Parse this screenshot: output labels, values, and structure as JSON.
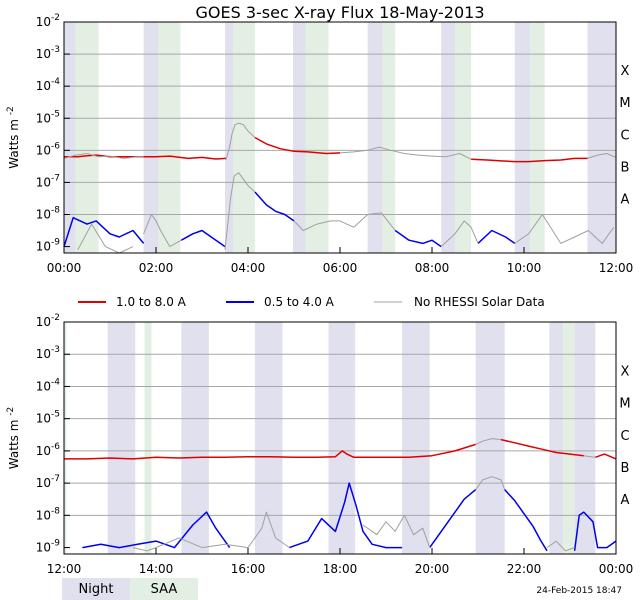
{
  "colors": {
    "long": "#e00000",
    "short": "#0000ee",
    "norhessi": "#a0a0a0",
    "night": "#e0e0ee",
    "saa": "#e2efe2",
    "grid": "#a8a8a8",
    "frame": "#000000"
  },
  "legend": {
    "long": "1.0 to 8.0 A",
    "short": "0.5 to 4.0 A",
    "norhessi": "No RHESSI Solar Data",
    "night": "Night",
    "saa": "SAA"
  },
  "footer": {
    "timestamp": "24-Feb-2015 18:47"
  },
  "chart_data": [
    {
      "type": "line",
      "title": "GOES 3-sec X-ray Flux   18-May-2013",
      "ylabel": "Watts m",
      "ylabel_sup": "-2",
      "yscale": "log",
      "ylim": [
        -9.2,
        -2
      ],
      "xlim": [
        0,
        12
      ],
      "xticks": [
        "00:00",
        "02:00",
        "04:00",
        "06:00",
        "08:00",
        "10:00",
        "12:00"
      ],
      "ytick_exponents": [
        -9,
        -8,
        -7,
        -6,
        -5,
        -4,
        -3,
        -2
      ],
      "class_labels": [
        {
          "label": "A",
          "exp": -8
        },
        {
          "label": "B",
          "exp": -7
        },
        {
          "label": "C",
          "exp": -6
        },
        {
          "label": "M",
          "exp": -5
        },
        {
          "label": "X",
          "exp": -4
        }
      ],
      "night": [
        [
          0,
          0.25
        ],
        [
          1.73,
          2.05
        ],
        [
          3.5,
          3.68
        ],
        [
          4.98,
          5.25
        ],
        [
          6.6,
          6.93
        ],
        [
          8.2,
          8.5
        ],
        [
          9.8,
          10.13
        ],
        [
          11.38,
          12
        ]
      ],
      "saa": [
        [
          0.25,
          0.75
        ],
        [
          2.05,
          2.53
        ],
        [
          3.68,
          4.15
        ],
        [
          5.25,
          5.75
        ],
        [
          6.93,
          7.2
        ],
        [
          8.5,
          8.85
        ],
        [
          10.13,
          10.45
        ]
      ],
      "series": [
        {
          "name": "1.0 to 8.0 A",
          "key": "long",
          "t": [
            0,
            0.3,
            0.5,
            0.7,
            1.0,
            1.5,
            2.0,
            2.3,
            2.7,
            3.0,
            3.3,
            3.52
          ],
          "y": [
            -6.2,
            -6.2,
            -6.17,
            -6.15,
            -6.2,
            -6.2,
            -6.2,
            -6.18,
            -6.25,
            -6.22,
            -6.27,
            -6.25
          ]
        },
        {
          "name": "1.0 to 8.0 A",
          "key": "long",
          "t": [
            4.15,
            4.4,
            4.7,
            5.0,
            5.3,
            5.7,
            6.0
          ],
          "y": [
            -5.6,
            -5.8,
            -5.95,
            -6.03,
            -6.05,
            -6.1,
            -6.08
          ]
        },
        {
          "name": "1.0 to 8.0 A",
          "key": "long",
          "t": [
            8.85,
            9.2,
            9.5,
            9.8,
            10.1,
            10.45,
            10.8,
            11.1,
            11.38
          ],
          "y": [
            -6.28,
            -6.3,
            -6.33,
            -6.35,
            -6.35,
            -6.32,
            -6.3,
            -6.25,
            -6.25
          ]
        },
        {
          "name": "No RHESSI Solar Data",
          "key": "norhessi",
          "t": [
            0,
            0.25,
            0.5,
            0.75,
            1.0,
            1.3,
            1.6,
            1.73
          ],
          "y": [
            -6.25,
            -6.15,
            -6.1,
            -6.2,
            -6.18,
            -6.25,
            -6.2,
            -6.2
          ]
        },
        {
          "name": "No RHESSI Solar Data",
          "key": "norhessi",
          "t": [
            3.52,
            3.6,
            3.65,
            3.72,
            3.8,
            3.9,
            4.0,
            4.15
          ],
          "y": [
            -6.3,
            -5.9,
            -5.5,
            -5.2,
            -5.15,
            -5.2,
            -5.4,
            -5.6
          ]
        },
        {
          "name": "No RHESSI Solar Data",
          "key": "norhessi",
          "t": [
            6.0,
            6.3,
            6.6,
            6.85,
            7.1,
            7.4,
            7.7,
            8.0,
            8.3,
            8.6,
            8.85
          ],
          "y": [
            -6.08,
            -6.05,
            -6.0,
            -5.9,
            -6.0,
            -6.1,
            -6.15,
            -6.18,
            -6.2,
            -6.1,
            -6.28
          ]
        },
        {
          "name": "No RHESSI Solar Data",
          "key": "norhessi",
          "t": [
            11.38,
            11.6,
            11.8,
            12.0
          ],
          "y": [
            -6.25,
            -6.15,
            -6.1,
            -6.22
          ]
        },
        {
          "name": "0.5 to 4.0 A",
          "key": "short",
          "t": [
            0,
            0.2,
            0.5,
            0.7,
            1.0,
            1.2,
            1.5,
            1.73
          ],
          "y": [
            -9.0,
            -8.1,
            -8.3,
            -8.2,
            -8.6,
            -8.7,
            -8.5,
            -8.9
          ]
        },
        {
          "name": "0.5 to 4.0 A",
          "key": "short",
          "t": [
            2.55,
            2.8,
            3.0,
            3.2,
            3.4,
            3.5
          ],
          "y": [
            -8.8,
            -8.6,
            -8.5,
            -8.7,
            -8.9,
            -9.0
          ]
        },
        {
          "name": "0.5 to 4.0 A",
          "key": "short",
          "t": [
            4.15,
            4.4,
            4.6,
            4.8,
            5.0
          ],
          "y": [
            -7.3,
            -7.7,
            -7.9,
            -8.0,
            -8.2
          ]
        },
        {
          "name": "0.5 to 4.0 A",
          "key": "short",
          "t": [
            7.2,
            7.5,
            7.8,
            8.0,
            8.2
          ],
          "y": [
            -8.5,
            -8.8,
            -8.9,
            -8.8,
            -9.0
          ]
        },
        {
          "name": "0.5 to 4.0 A",
          "key": "short",
          "t": [
            9.0,
            9.3,
            9.6,
            9.8
          ],
          "y": [
            -8.9,
            -8.5,
            -8.7,
            -8.9
          ]
        },
        {
          "name": "No RHESSI Solar Data",
          "key": "norhessi",
          "t": [
            0.3,
            0.6,
            0.9,
            1.2,
            1.5
          ],
          "y": [
            -9.1,
            -8.3,
            -9.0,
            -9.2,
            -9.0
          ]
        },
        {
          "name": "No RHESSI Solar Data",
          "key": "norhessi",
          "t": [
            1.73,
            1.9,
            2.0,
            2.1,
            2.3,
            2.55
          ],
          "y": [
            -8.6,
            -8.0,
            -8.2,
            -8.5,
            -9.0,
            -8.8
          ]
        },
        {
          "name": "No RHESSI Solar Data",
          "key": "norhessi",
          "t": [
            3.5,
            3.62,
            3.7,
            3.8,
            3.9,
            4.0,
            4.15
          ],
          "y": [
            -9.1,
            -7.5,
            -6.8,
            -6.7,
            -6.9,
            -7.1,
            -7.3
          ]
        },
        {
          "name": "No RHESSI Solar Data",
          "key": "norhessi",
          "t": [
            5.0,
            5.2,
            5.5,
            5.8,
            6.0,
            6.3,
            6.6,
            6.9,
            7.2
          ],
          "y": [
            -8.2,
            -8.5,
            -8.3,
            -8.2,
            -8.2,
            -8.4,
            -8.0,
            -7.95,
            -8.5
          ]
        },
        {
          "name": "No RHESSI Solar Data",
          "key": "norhessi",
          "t": [
            8.2,
            8.5,
            8.7,
            8.85,
            9.0
          ],
          "y": [
            -9.0,
            -8.6,
            -8.2,
            -8.4,
            -8.9
          ]
        },
        {
          "name": "No RHESSI Solar Data",
          "key": "norhessi",
          "t": [
            9.8,
            10.1,
            10.4,
            10.8,
            11.1,
            11.4,
            11.7,
            11.95
          ],
          "y": [
            -8.9,
            -8.6,
            -8.0,
            -8.9,
            -8.7,
            -8.5,
            -8.9,
            -8.4
          ]
        }
      ]
    },
    {
      "type": "line",
      "title": "",
      "ylabel": "Watts m",
      "ylabel_sup": "-2",
      "yscale": "log",
      "ylim": [
        -9.2,
        -2
      ],
      "xlim": [
        12,
        24
      ],
      "xticks": [
        "12:00",
        "14:00",
        "16:00",
        "18:00",
        "20:00",
        "22:00",
        "00:00"
      ],
      "ytick_exponents": [
        -9,
        -8,
        -7,
        -6,
        -5,
        -4,
        -3,
        -2
      ],
      "class_labels": [
        {
          "label": "A",
          "exp": -8
        },
        {
          "label": "B",
          "exp": -7
        },
        {
          "label": "C",
          "exp": -6
        },
        {
          "label": "M",
          "exp": -5
        },
        {
          "label": "X",
          "exp": -4
        }
      ],
      "night": [
        [
          12.95,
          13.55
        ],
        [
          14.55,
          15.15
        ],
        [
          16.15,
          16.75
        ],
        [
          17.75,
          18.33
        ],
        [
          19.35,
          19.95
        ],
        [
          20.95,
          21.58
        ],
        [
          22.55,
          22.85
        ],
        [
          23.1,
          23.55
        ]
      ],
      "saa": [
        [
          12.0,
          12.05
        ],
        [
          13.75,
          13.9
        ],
        [
          22.85,
          23.1
        ]
      ],
      "series": [
        {
          "name": "1.0 to 8.0 A",
          "key": "long",
          "t": [
            12.0,
            12.5,
            13.0,
            13.5,
            14.0,
            14.5,
            15.0,
            15.5,
            16.0,
            16.5,
            17.0,
            17.5,
            17.9,
            18.05,
            18.15,
            18.3,
            18.6,
            19.0,
            19.5,
            20.0,
            20.5,
            20.95
          ],
          "y": [
            -6.25,
            -6.25,
            -6.22,
            -6.25,
            -6.2,
            -6.22,
            -6.2,
            -6.2,
            -6.18,
            -6.18,
            -6.2,
            -6.2,
            -6.18,
            -6.0,
            -6.1,
            -6.2,
            -6.2,
            -6.2,
            -6.2,
            -6.15,
            -6.0,
            -5.8
          ]
        },
        {
          "name": "1.0 to 8.0 A",
          "key": "long",
          "t": [
            21.5,
            21.8,
            22.1,
            22.4,
            22.7,
            23.0,
            23.3
          ],
          "y": [
            -5.65,
            -5.75,
            -5.85,
            -5.95,
            -6.05,
            -6.1,
            -6.15
          ]
        },
        {
          "name": "1.0 to 8.0 A",
          "key": "long",
          "t": [
            23.55,
            23.75,
            24.0
          ],
          "y": [
            -6.2,
            -6.1,
            -6.25
          ]
        },
        {
          "name": "No RHESSI Solar Data",
          "key": "norhessi",
          "t": [
            20.95,
            21.1,
            21.3,
            21.5
          ],
          "y": [
            -5.8,
            -5.7,
            -5.62,
            -5.65
          ]
        },
        {
          "name": "No RHESSI Solar Data",
          "key": "norhessi",
          "t": [
            23.3,
            23.45,
            23.55
          ],
          "y": [
            -6.15,
            -6.18,
            -6.2
          ]
        },
        {
          "name": "0.5 to 4.0 A",
          "key": "short",
          "t": [
            12.4,
            12.8,
            13.2,
            13.6,
            14.0,
            14.4,
            14.8,
            15.1,
            15.3,
            15.6
          ],
          "y": [
            -9.0,
            -8.9,
            -9.0,
            -8.9,
            -8.8,
            -9.0,
            -8.3,
            -7.9,
            -8.4,
            -9.0
          ]
        },
        {
          "name": "0.5 to 4.0 A",
          "key": "short",
          "t": [
            16.9,
            17.3,
            17.6,
            17.9,
            18.1,
            18.2,
            18.35,
            18.5,
            18.7,
            19.0,
            19.35
          ],
          "y": [
            -9.0,
            -8.8,
            -8.1,
            -8.5,
            -7.6,
            -7.0,
            -7.7,
            -8.5,
            -8.9,
            -9.0,
            -9.0
          ]
        },
        {
          "name": "0.5 to 4.0 A",
          "key": "short",
          "t": [
            19.95,
            20.1,
            20.4,
            20.7,
            20.95
          ],
          "y": [
            -9.0,
            -8.7,
            -8.1,
            -7.5,
            -7.2
          ]
        },
        {
          "name": "0.5 to 4.0 A",
          "key": "short",
          "t": [
            21.58,
            21.8,
            22.0,
            22.2,
            22.35,
            22.5
          ],
          "y": [
            -7.2,
            -7.55,
            -7.95,
            -8.35,
            -8.75,
            -9.1
          ]
        },
        {
          "name": "0.5 to 4.0 A",
          "key": "short",
          "t": [
            23.1,
            23.2,
            23.3,
            23.5,
            23.6,
            23.8,
            24.0
          ],
          "y": [
            -9.1,
            -8.0,
            -7.9,
            -8.2,
            -9.0,
            -9.0,
            -8.8
          ]
        },
        {
          "name": "No RHESSI Solar Data",
          "key": "norhessi",
          "t": [
            13.5,
            13.8,
            14.0,
            14.5,
            15.0,
            15.5,
            16.0,
            16.3,
            16.4,
            16.6,
            16.9
          ],
          "y": [
            -9.0,
            -9.1,
            -9.0,
            -8.7,
            -9.0,
            -8.9,
            -9.0,
            -8.4,
            -7.9,
            -8.7,
            -9.0
          ]
        },
        {
          "name": "No RHESSI Solar Data",
          "key": "norhessi",
          "t": [
            18.5,
            18.8,
            19.0,
            19.2,
            19.4,
            19.6,
            19.8,
            19.95
          ],
          "y": [
            -8.3,
            -8.6,
            -8.2,
            -8.5,
            -8.0,
            -8.6,
            -8.4,
            -9.0
          ]
        },
        {
          "name": "No RHESSI Solar Data",
          "key": "norhessi",
          "t": [
            20.95,
            21.1,
            21.3,
            21.5,
            21.58
          ],
          "y": [
            -7.2,
            -6.9,
            -6.8,
            -6.9,
            -7.2
          ]
        },
        {
          "name": "No RHESSI Solar Data",
          "key": "norhessi",
          "t": [
            22.5,
            22.7,
            22.9,
            23.1
          ],
          "y": [
            -9.0,
            -8.8,
            -9.1,
            -9.0
          ]
        }
      ]
    }
  ]
}
